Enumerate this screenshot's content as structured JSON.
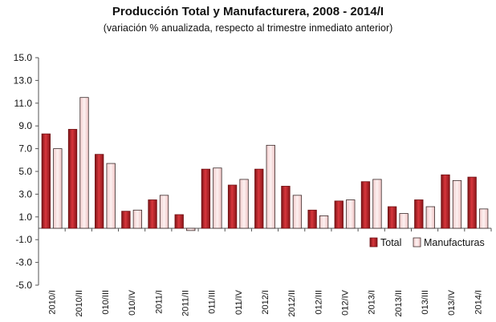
{
  "chart_data": {
    "type": "bar",
    "title": "Producción Total y Manufacturera, 2008 - 2014/I",
    "subtitle": "(variación % anualizada, respecto al trimestre inmediato anterior)",
    "categories": [
      "2010/I",
      "2010/II",
      "010/III",
      "010/IV",
      "2011/I",
      "2011/II",
      "011/III",
      "011/IV",
      "2012/I",
      "2012/II",
      "012/III",
      "012/IV",
      "2013/I",
      "2013/II",
      "013/III",
      "013/IV",
      "2014/I"
    ],
    "series": [
      {
        "name": "Total",
        "values": [
          8.3,
          8.7,
          6.5,
          1.5,
          2.5,
          1.2,
          5.2,
          3.8,
          5.2,
          3.7,
          1.6,
          2.4,
          4.1,
          1.9,
          2.5,
          4.7,
          4.5
        ],
        "color": "#c0272d"
      },
      {
        "name": "Manufacturas",
        "values": [
          7.0,
          11.5,
          5.7,
          1.6,
          2.9,
          -0.2,
          5.3,
          4.3,
          7.3,
          2.9,
          1.1,
          2.5,
          4.3,
          1.3,
          1.9,
          4.2,
          1.7
        ],
        "color": "#f9dcdc"
      }
    ],
    "yticks": [
      "15.0",
      "13.0",
      "11.0",
      "9.0",
      "7.0",
      "5.0",
      "3.0",
      "1.0",
      "-1.0",
      "-3.0",
      "-5.0"
    ],
    "ylim": [
      -5,
      15
    ],
    "grid": false,
    "legend_position": "bottom-right"
  }
}
